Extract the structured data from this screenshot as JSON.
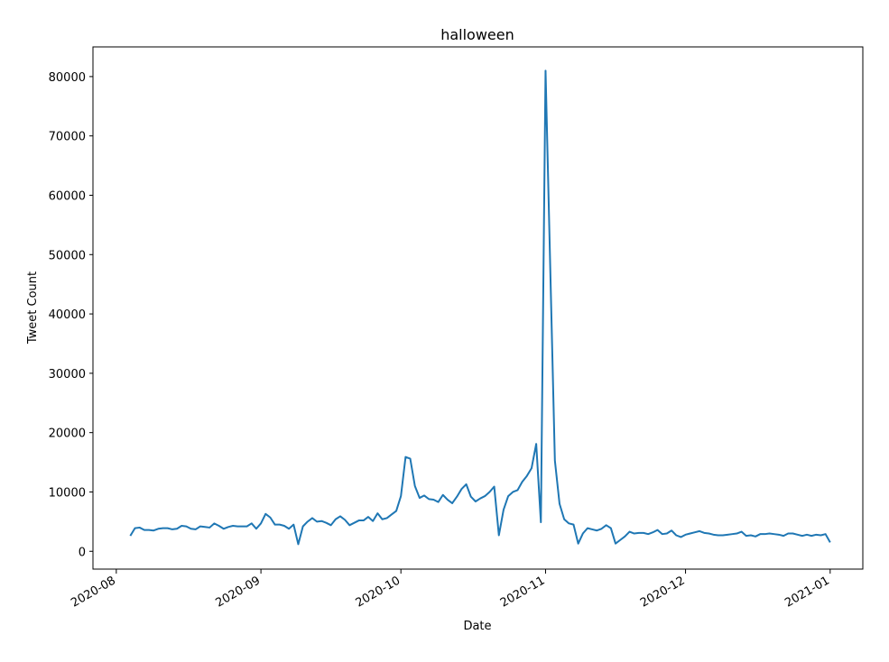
{
  "chart_data": {
    "type": "line",
    "title": "halloween",
    "xlabel": "Date",
    "ylabel": "Tweet Count",
    "color": "#1f77b4",
    "x": [
      "2020-08-04",
      "2020-08-05",
      "2020-08-06",
      "2020-08-07",
      "2020-08-08",
      "2020-08-09",
      "2020-08-10",
      "2020-08-11",
      "2020-08-12",
      "2020-08-13",
      "2020-08-14",
      "2020-08-15",
      "2020-08-16",
      "2020-08-17",
      "2020-08-18",
      "2020-08-19",
      "2020-08-20",
      "2020-08-21",
      "2020-08-22",
      "2020-08-23",
      "2020-08-24",
      "2020-08-25",
      "2020-08-26",
      "2020-08-27",
      "2020-08-28",
      "2020-08-29",
      "2020-08-30",
      "2020-08-31",
      "2020-09-01",
      "2020-09-02",
      "2020-09-03",
      "2020-09-04",
      "2020-09-05",
      "2020-09-06",
      "2020-09-07",
      "2020-09-08",
      "2020-09-09",
      "2020-09-10",
      "2020-09-11",
      "2020-09-12",
      "2020-09-13",
      "2020-09-14",
      "2020-09-15",
      "2020-09-16",
      "2020-09-17",
      "2020-09-18",
      "2020-09-19",
      "2020-09-20",
      "2020-09-21",
      "2020-09-22",
      "2020-09-23",
      "2020-09-24",
      "2020-09-25",
      "2020-09-26",
      "2020-09-27",
      "2020-09-28",
      "2020-09-29",
      "2020-09-30",
      "2020-10-01",
      "2020-10-02",
      "2020-10-03",
      "2020-10-04",
      "2020-10-05",
      "2020-10-06",
      "2020-10-07",
      "2020-10-08",
      "2020-10-09",
      "2020-10-10",
      "2020-10-11",
      "2020-10-12",
      "2020-10-13",
      "2020-10-14",
      "2020-10-15",
      "2020-10-16",
      "2020-10-17",
      "2020-10-18",
      "2020-10-19",
      "2020-10-20",
      "2020-10-21",
      "2020-10-22",
      "2020-10-23",
      "2020-10-24",
      "2020-10-25",
      "2020-10-26",
      "2020-10-27",
      "2020-10-28",
      "2020-10-29",
      "2020-10-30",
      "2020-10-31",
      "2020-11-01",
      "2020-11-02",
      "2020-11-03",
      "2020-11-04",
      "2020-11-05",
      "2020-11-06",
      "2020-11-07",
      "2020-11-08",
      "2020-11-09",
      "2020-11-10",
      "2020-11-11",
      "2020-11-12",
      "2020-11-13",
      "2020-11-14",
      "2020-11-15",
      "2020-11-16",
      "2020-11-17",
      "2020-11-18",
      "2020-11-19",
      "2020-11-20",
      "2020-11-21",
      "2020-11-22",
      "2020-11-23",
      "2020-11-24",
      "2020-11-25",
      "2020-11-26",
      "2020-11-27",
      "2020-11-28",
      "2020-11-29",
      "2020-11-30",
      "2020-12-01",
      "2020-12-02",
      "2020-12-03",
      "2020-12-04",
      "2020-12-05",
      "2020-12-06",
      "2020-12-07",
      "2020-12-08",
      "2020-12-09",
      "2020-12-10",
      "2020-12-11",
      "2020-12-12",
      "2020-12-13",
      "2020-12-14",
      "2020-12-15",
      "2020-12-16",
      "2020-12-17",
      "2020-12-18",
      "2020-12-19",
      "2020-12-20",
      "2020-12-21",
      "2020-12-22",
      "2020-12-23",
      "2020-12-24",
      "2020-12-25",
      "2020-12-26",
      "2020-12-27",
      "2020-12-28",
      "2020-12-29",
      "2020-12-30",
      "2020-12-31",
      "2021-01-01"
    ],
    "values": [
      2600,
      3900,
      4000,
      3600,
      3600,
      3500,
      3800,
      3900,
      3900,
      3700,
      3800,
      4300,
      4200,
      3800,
      3700,
      4200,
      4100,
      4000,
      4700,
      4300,
      3800,
      4100,
      4300,
      4200,
      4200,
      4200,
      4700,
      3800,
      4700,
      6300,
      5700,
      4500,
      4500,
      4300,
      3800,
      4500,
      1200,
      4200,
      5000,
      5600,
      5000,
      5100,
      4800,
      4400,
      5400,
      5900,
      5300,
      4400,
      4800,
      5200,
      5200,
      5800,
      5100,
      6400,
      5400,
      5600,
      6200,
      6800,
      9300,
      15900,
      15600,
      11000,
      9000,
      9400,
      8800,
      8700,
      8300,
      9500,
      8700,
      8100,
      9200,
      10500,
      11300,
      9200,
      8400,
      8900,
      9300,
      10000,
      10900,
      2700,
      7000,
      9300,
      10000,
      10300,
      11700,
      12700,
      14000,
      18100,
      4900,
      81000,
      48000,
      15300,
      8000,
      5400,
      4700,
      4500,
      1300,
      3000,
      3900,
      3700,
      3500,
      3800,
      4400,
      3900,
      1300,
      1900,
      2500,
      3300,
      3000,
      3100,
      3100,
      2900,
      3200,
      3600,
      2900,
      3000,
      3500,
      2700,
      2400,
      2800,
      3000,
      3200,
      3400,
      3100,
      3000,
      2800,
      2700,
      2700,
      2800,
      2900,
      3000,
      3300,
      2600,
      2700,
      2500,
      2900,
      2900,
      3000,
      2900,
      2800,
      2600,
      3000,
      3000,
      2800,
      2600,
      2800,
      2600,
      2800,
      2700,
      2900,
      1500
    ],
    "xlim": [
      "2020-07-27",
      "2021-01-08"
    ],
    "xticks": [
      {
        "value": "2020-08-01",
        "label": "2020-08"
      },
      {
        "value": "2020-09-01",
        "label": "2020-09"
      },
      {
        "value": "2020-10-01",
        "label": "2020-10"
      },
      {
        "value": "2020-11-01",
        "label": "2020-11"
      },
      {
        "value": "2020-12-01",
        "label": "2020-12"
      },
      {
        "value": "2021-01-01",
        "label": "2021-01"
      }
    ],
    "ylim": [
      -3000,
      85000
    ],
    "yticks": [
      0,
      10000,
      20000,
      30000,
      40000,
      50000,
      60000,
      70000,
      80000
    ]
  }
}
